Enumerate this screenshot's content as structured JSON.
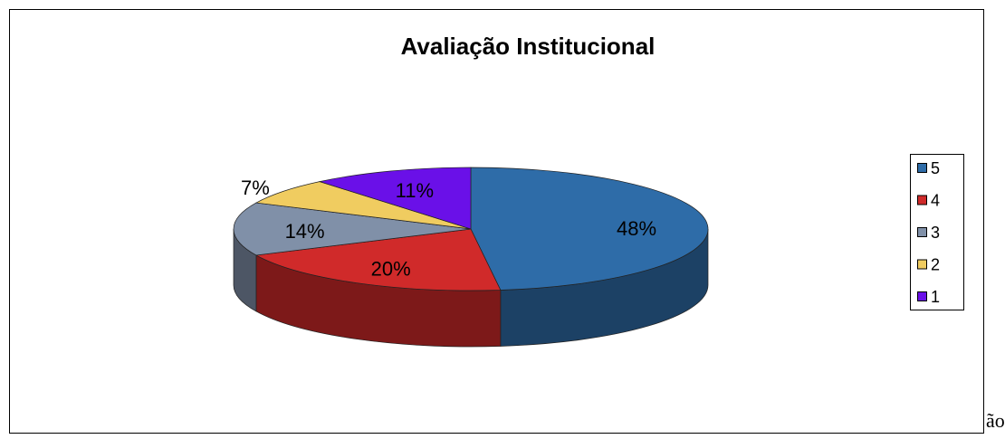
{
  "chart_data": {
    "type": "pie3d",
    "title": "Avaliação Institucional",
    "categories": [
      "5",
      "4",
      "3",
      "2",
      "1"
    ],
    "values": [
      48,
      20,
      14,
      7,
      11
    ],
    "value_labels": [
      "48%",
      "20%",
      "14%",
      "7%",
      "11%"
    ],
    "colors": [
      "#2e6ca8",
      "#d02a2a",
      "#8090a8",
      "#f0cc60",
      "#6a10e8"
    ],
    "legend": "right"
  },
  "page_text": "ão"
}
